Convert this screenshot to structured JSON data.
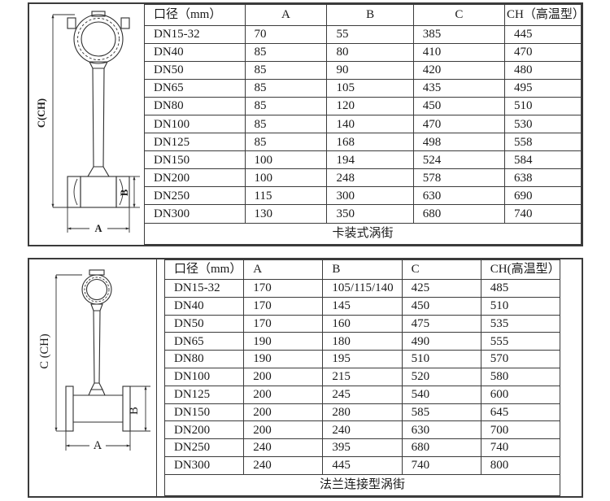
{
  "colors": {
    "border": "#3b3b3b",
    "line": "#2f2f2f",
    "text": "#1a1a1a",
    "background": "#ffffff"
  },
  "section1": {
    "diagram": {
      "label_c": "C(CH)",
      "label_b": "B",
      "label_a": "A"
    },
    "table": {
      "headers": [
        "口径（mm）",
        "A",
        "B",
        "C",
        "CH（高温型）"
      ],
      "rows": [
        [
          "DN15-32",
          "70",
          "55",
          "385",
          "445"
        ],
        [
          "DN40",
          "85",
          "80",
          "410",
          "470"
        ],
        [
          "DN50",
          "85",
          "90",
          "420",
          "480"
        ],
        [
          "DN65",
          "85",
          "105",
          "435",
          "495"
        ],
        [
          "DN80",
          "85",
          "120",
          "450",
          "510"
        ],
        [
          "DN100",
          "85",
          "140",
          "470",
          "530"
        ],
        [
          "DN125",
          "85",
          "168",
          "498",
          "558"
        ],
        [
          "DN150",
          "100",
          "194",
          "524",
          "584"
        ],
        [
          "DN200",
          "100",
          "248",
          "578",
          "638"
        ],
        [
          "DN250",
          "115",
          "300",
          "630",
          "690"
        ],
        [
          "DN300",
          "130",
          "350",
          "680",
          "740"
        ]
      ],
      "caption": "卡装式涡街"
    }
  },
  "section2": {
    "diagram": {
      "label_c": "C (CH)",
      "label_b": "B",
      "label_a": "A"
    },
    "table": {
      "headers": [
        "口径（mm）",
        "A",
        "B",
        "C",
        "CH(高温型）"
      ],
      "rows": [
        [
          "DN15-32",
          "170",
          "105/115/140",
          "425",
          "485"
        ],
        [
          "DN40",
          "170",
          "145",
          "450",
          "510"
        ],
        [
          "DN50",
          "170",
          "160",
          "475",
          "535"
        ],
        [
          "DN65",
          "190",
          "180",
          "490",
          "555"
        ],
        [
          "DN80",
          "190",
          "195",
          "510",
          "570"
        ],
        [
          "DN100",
          "200",
          "215",
          "520",
          "580"
        ],
        [
          "DN125",
          "200",
          "245",
          "540",
          "600"
        ],
        [
          "DN150",
          "200",
          "280",
          "585",
          "645"
        ],
        [
          "DN200",
          "200",
          "240",
          "630",
          "700"
        ],
        [
          "DN250",
          "240",
          "395",
          "680",
          "740"
        ],
        [
          "DN300",
          "240",
          "445",
          "740",
          "800"
        ]
      ],
      "caption": "法兰连接型涡街"
    }
  }
}
